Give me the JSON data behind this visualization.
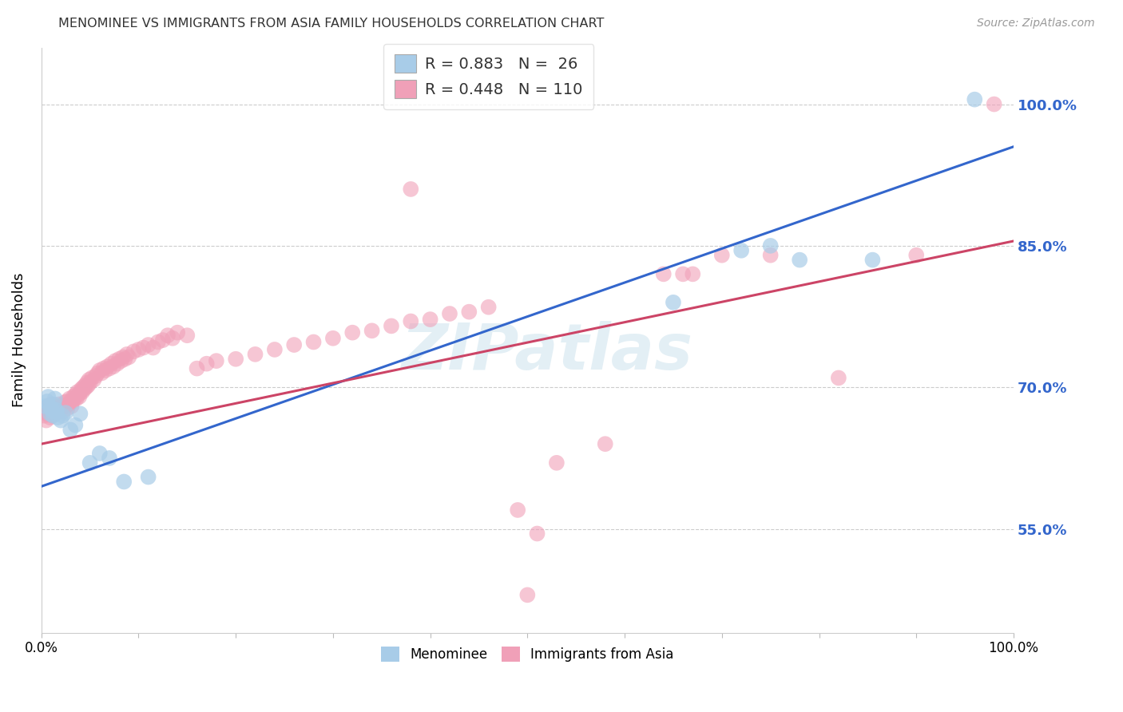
{
  "title": "MENOMINEE VS IMMIGRANTS FROM ASIA FAMILY HOUSEHOLDS CORRELATION CHART",
  "source": "Source: ZipAtlas.com",
  "ylabel": "Family Households",
  "xlim": [
    0.0,
    1.0
  ],
  "ylim": [
    0.44,
    1.06
  ],
  "yticks": [
    0.55,
    0.7,
    0.85,
    1.0
  ],
  "ytick_labels": [
    "55.0%",
    "70.0%",
    "85.0%",
    "100.0%"
  ],
  "watermark": "ZIPatlas",
  "menominee_color": "#a8cce8",
  "immigrants_color": "#f0a0b8",
  "trend_blue": "#3366cc",
  "trend_pink": "#cc4466",
  "blue_line": {
    "x0": 0.0,
    "y0": 0.595,
    "x1": 1.0,
    "y1": 0.955
  },
  "pink_line": {
    "x0": 0.0,
    "y0": 0.64,
    "x1": 1.0,
    "y1": 0.855
  },
  "menominee_points": [
    [
      0.004,
      0.68
    ],
    [
      0.006,
      0.685
    ],
    [
      0.007,
      0.69
    ],
    [
      0.008,
      0.68
    ],
    [
      0.009,
      0.672
    ],
    [
      0.01,
      0.678
    ],
    [
      0.011,
      0.675
    ],
    [
      0.012,
      0.67
    ],
    [
      0.013,
      0.682
    ],
    [
      0.014,
      0.688
    ],
    [
      0.015,
      0.676
    ],
    [
      0.016,
      0.674
    ],
    [
      0.017,
      0.668
    ],
    [
      0.02,
      0.665
    ],
    [
      0.022,
      0.67
    ],
    [
      0.025,
      0.673
    ],
    [
      0.03,
      0.655
    ],
    [
      0.035,
      0.66
    ],
    [
      0.04,
      0.672
    ],
    [
      0.05,
      0.62
    ],
    [
      0.06,
      0.63
    ],
    [
      0.07,
      0.625
    ],
    [
      0.085,
      0.6
    ],
    [
      0.11,
      0.605
    ],
    [
      0.65,
      0.79
    ],
    [
      0.72,
      0.845
    ],
    [
      0.75,
      0.85
    ],
    [
      0.78,
      0.835
    ],
    [
      0.855,
      0.835
    ],
    [
      0.96,
      1.005
    ]
  ],
  "immigrants_points": [
    [
      0.003,
      0.67
    ],
    [
      0.004,
      0.678
    ],
    [
      0.005,
      0.665
    ],
    [
      0.006,
      0.672
    ],
    [
      0.007,
      0.68
    ],
    [
      0.008,
      0.675
    ],
    [
      0.009,
      0.668
    ],
    [
      0.01,
      0.682
    ],
    [
      0.011,
      0.67
    ],
    [
      0.012,
      0.676
    ],
    [
      0.013,
      0.678
    ],
    [
      0.014,
      0.672
    ],
    [
      0.015,
      0.68
    ],
    [
      0.016,
      0.675
    ],
    [
      0.017,
      0.678
    ],
    [
      0.018,
      0.682
    ],
    [
      0.019,
      0.676
    ],
    [
      0.02,
      0.68
    ],
    [
      0.021,
      0.678
    ],
    [
      0.022,
      0.674
    ],
    [
      0.023,
      0.68
    ],
    [
      0.024,
      0.684
    ],
    [
      0.025,
      0.68
    ],
    [
      0.026,
      0.685
    ],
    [
      0.027,
      0.678
    ],
    [
      0.028,
      0.682
    ],
    [
      0.029,
      0.688
    ],
    [
      0.03,
      0.685
    ],
    [
      0.031,
      0.68
    ],
    [
      0.032,
      0.685
    ],
    [
      0.033,
      0.69
    ],
    [
      0.034,
      0.688
    ],
    [
      0.035,
      0.692
    ],
    [
      0.036,
      0.688
    ],
    [
      0.037,
      0.695
    ],
    [
      0.038,
      0.692
    ],
    [
      0.039,
      0.69
    ],
    [
      0.04,
      0.695
    ],
    [
      0.041,
      0.698
    ],
    [
      0.042,
      0.695
    ],
    [
      0.043,
      0.7
    ],
    [
      0.044,
      0.698
    ],
    [
      0.045,
      0.702
    ],
    [
      0.046,
      0.7
    ],
    [
      0.047,
      0.705
    ],
    [
      0.048,
      0.702
    ],
    [
      0.049,
      0.708
    ],
    [
      0.05,
      0.705
    ],
    [
      0.052,
      0.71
    ],
    [
      0.054,
      0.708
    ],
    [
      0.056,
      0.712
    ],
    [
      0.058,
      0.715
    ],
    [
      0.06,
      0.718
    ],
    [
      0.062,
      0.715
    ],
    [
      0.064,
      0.72
    ],
    [
      0.066,
      0.718
    ],
    [
      0.068,
      0.722
    ],
    [
      0.07,
      0.72
    ],
    [
      0.072,
      0.725
    ],
    [
      0.074,
      0.722
    ],
    [
      0.076,
      0.728
    ],
    [
      0.078,
      0.725
    ],
    [
      0.08,
      0.73
    ],
    [
      0.082,
      0.728
    ],
    [
      0.084,
      0.732
    ],
    [
      0.086,
      0.73
    ],
    [
      0.088,
      0.735
    ],
    [
      0.09,
      0.732
    ],
    [
      0.095,
      0.738
    ],
    [
      0.1,
      0.74
    ],
    [
      0.105,
      0.742
    ],
    [
      0.11,
      0.745
    ],
    [
      0.115,
      0.742
    ],
    [
      0.12,
      0.748
    ],
    [
      0.125,
      0.75
    ],
    [
      0.13,
      0.755
    ],
    [
      0.135,
      0.752
    ],
    [
      0.14,
      0.758
    ],
    [
      0.15,
      0.755
    ],
    [
      0.16,
      0.72
    ],
    [
      0.17,
      0.725
    ],
    [
      0.18,
      0.728
    ],
    [
      0.2,
      0.73
    ],
    [
      0.22,
      0.735
    ],
    [
      0.24,
      0.74
    ],
    [
      0.26,
      0.745
    ],
    [
      0.28,
      0.748
    ],
    [
      0.3,
      0.752
    ],
    [
      0.32,
      0.758
    ],
    [
      0.34,
      0.76
    ],
    [
      0.36,
      0.765
    ],
    [
      0.38,
      0.77
    ],
    [
      0.4,
      0.772
    ],
    [
      0.42,
      0.778
    ],
    [
      0.44,
      0.78
    ],
    [
      0.46,
      0.785
    ],
    [
      0.38,
      0.91
    ],
    [
      0.49,
      0.57
    ],
    [
      0.51,
      0.545
    ],
    [
      0.5,
      0.48
    ],
    [
      0.53,
      0.62
    ],
    [
      0.58,
      0.64
    ],
    [
      0.64,
      0.82
    ],
    [
      0.66,
      0.82
    ],
    [
      0.7,
      0.84
    ],
    [
      0.75,
      0.84
    ],
    [
      0.82,
      0.71
    ],
    [
      0.9,
      0.84
    ],
    [
      0.98,
      1.0
    ],
    [
      0.67,
      0.82
    ]
  ]
}
